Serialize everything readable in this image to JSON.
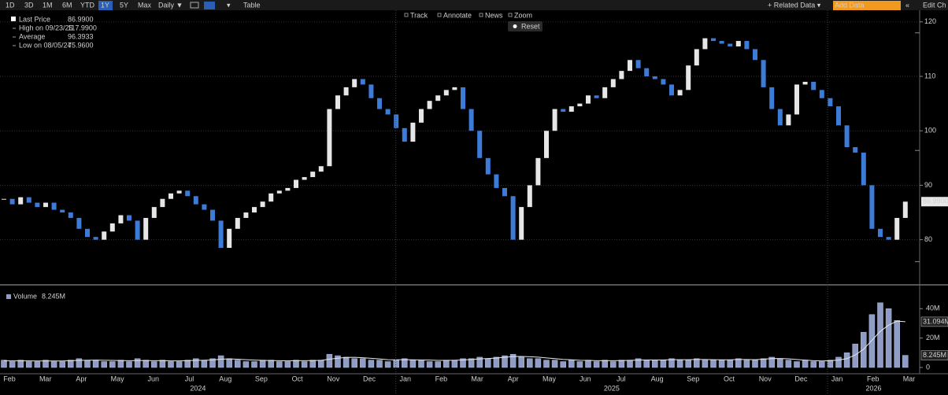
{
  "toolbar": {
    "ranges": [
      "1D",
      "3D",
      "1M",
      "6M",
      "YTD",
      "1Y",
      "5Y",
      "Max"
    ],
    "active_range": "1Y",
    "interval": "Daily ▼",
    "table": "Table",
    "related": "+ Related Data ▾",
    "add_data": "Add Data",
    "edit": "Edit Ch"
  },
  "panel_tools": [
    "Track",
    "Annotate",
    "News",
    "Zoom"
  ],
  "reset": "Reset",
  "x_axis": {
    "months": [
      "Feb",
      "Mar",
      "Apr",
      "May",
      "Jun",
      "Jul",
      "Aug",
      "Sep",
      "Oct",
      "Nov",
      "Dec",
      "Jan",
      "Feb",
      "Mar",
      "Apr",
      "May",
      "Jun",
      "Jul",
      "Aug",
      "Sep",
      "Oct",
      "Nov",
      "Dec",
      "Jan",
      "Feb",
      "Mar"
    ],
    "years": [
      "2024",
      "2025",
      "2026"
    ]
  },
  "chart_data": [
    {
      "type": "candlestick",
      "series": [
        {
          "name": "Last Price",
          "value_label": "86.9900",
          "values": [
            87.5,
            86.5,
            87.8,
            86.8,
            86.0,
            86.8,
            85.5,
            85.0,
            84.0,
            82.0,
            80.5,
            80.0,
            81.5,
            83.0,
            84.5,
            83.5,
            80.0,
            84.0,
            86.0,
            87.5,
            88.5,
            89.0,
            88.0,
            86.5,
            85.5,
            83.5,
            78.5,
            82.0,
            84.0,
            85.0,
            86.0,
            87.0,
            88.5,
            89.0,
            89.5,
            91.0,
            91.5,
            92.5,
            93.5,
            104.0,
            106.5,
            108.0,
            109.5,
            108.5,
            106.0,
            104.0,
            103.0,
            100.5,
            98.0,
            101.5,
            104.0,
            105.5,
            106.5,
            107.5,
            108.0,
            104.0,
            100.0,
            95.0,
            92.0,
            89.5,
            88.0,
            80.0,
            86.0,
            90.0,
            95.0,
            100.0,
            104.0,
            103.5,
            104.5,
            105.0,
            106.5,
            106.0,
            108.0,
            109.5,
            111.0,
            113.0,
            111.5,
            110.0,
            109.5,
            108.5,
            106.5,
            107.5,
            112.0,
            115.0,
            117.0,
            116.5,
            116.0,
            115.5,
            116.5,
            115.0,
            113.0,
            108.0,
            104.0,
            101.0,
            103.0,
            108.5,
            109.0,
            107.5,
            106.0,
            104.5,
            101.0,
            97.0,
            96.0,
            90.0,
            82.0,
            80.5,
            80.0,
            84.0,
            86.99
          ]
        }
      ],
      "stats": [
        {
          "name": "High on 09/23/25",
          "value": 117.99,
          "label": "117.9900"
        },
        {
          "name": "Average",
          "value": 96.3933,
          "label": "96.3933"
        },
        {
          "name": "Low on 08/05/24",
          "value": 75.96,
          "label": "75.9600"
        }
      ],
      "up_color": "#e6e6e6",
      "down_color": "#3d7bd9",
      "ylim": [
        72,
        122
      ],
      "yticks": [
        80,
        90,
        100,
        110,
        120
      ],
      "grid": true
    },
    {
      "type": "bar",
      "series": [
        {
          "name": "Volume",
          "color": "#8e9cc6",
          "value_label": "8.245M",
          "values": [
            5,
            4,
            5,
            4,
            4,
            5,
            4,
            4,
            5,
            6,
            5,
            5,
            4,
            4,
            5,
            4,
            6,
            5,
            4,
            5,
            4,
            4,
            5,
            6,
            5,
            6,
            8,
            6,
            5,
            4,
            4,
            5,
            5,
            4,
            4,
            5,
            4,
            5,
            5,
            9,
            8,
            7,
            6,
            6,
            5,
            5,
            4,
            5,
            6,
            5,
            5,
            4,
            4,
            5,
            5,
            6,
            6,
            7,
            6,
            7,
            8,
            9,
            7,
            6,
            6,
            5,
            5,
            4,
            5,
            4,
            5,
            4,
            5,
            4,
            5,
            5,
            6,
            5,
            5,
            5,
            6,
            5,
            5,
            6,
            5,
            5,
            5,
            5,
            6,
            5,
            5,
            6,
            7,
            6,
            5,
            4,
            5,
            4,
            4,
            5,
            7,
            10,
            16,
            24,
            36,
            44,
            40,
            32,
            8.245
          ]
        },
        {
          "type": "line",
          "color": "#e8e8e8",
          "value_label": "31.094M",
          "values": [
            4.5,
            4.5,
            4.5,
            4.5,
            4.4,
            4.4,
            4.4,
            4.4,
            4.6,
            4.8,
            4.9,
            5.0,
            4.9,
            4.8,
            4.7,
            4.6,
            4.7,
            4.7,
            4.6,
            4.6,
            4.5,
            4.5,
            4.6,
            4.8,
            4.9,
            5.1,
            5.6,
            5.8,
            5.6,
            5.3,
            5.0,
            4.8,
            4.7,
            4.6,
            4.5,
            4.6,
            4.6,
            4.7,
            4.8,
            5.6,
            6.3,
            6.8,
            6.9,
            6.6,
            6.2,
            5.8,
            5.3,
            5.2,
            5.3,
            5.2,
            5.1,
            5.0,
            4.8,
            4.8,
            4.9,
            5.1,
            5.4,
            5.8,
            6.1,
            6.4,
            6.9,
            7.4,
            7.5,
            7.3,
            7.0,
            6.5,
            6.0,
            5.5,
            5.2,
            4.9,
            4.8,
            4.6,
            4.6,
            4.6,
            4.7,
            4.8,
            5.0,
            5.1,
            5.1,
            5.1,
            5.3,
            5.3,
            5.3,
            5.4,
            5.4,
            5.3,
            5.2,
            5.2,
            5.4,
            5.4,
            5.3,
            5.6,
            6.0,
            6.1,
            5.9,
            5.4,
            5.0,
            4.6,
            4.4,
            4.6,
            5.0,
            6.0,
            8.5,
            12.4,
            18.5,
            24.6,
            28.8,
            31.5,
            31.094
          ]
        }
      ],
      "ylim": [
        0,
        53
      ],
      "yticks": [
        0,
        {
          "value": 20,
          "label": "20M"
        },
        {
          "value": 40,
          "label": "40M"
        }
      ]
    }
  ]
}
